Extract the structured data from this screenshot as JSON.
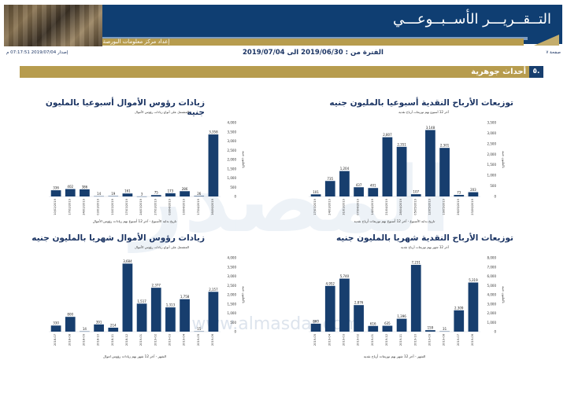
{
  "header": {
    "title": "التــقــريـــر الأســبــوعـــي",
    "prepared_by": "إعداد مركز معلومات البورصة المصرية"
  },
  "meta": {
    "page": "صفحة ٧",
    "period": "الفترة من : 2019/06/30 الى 2019/07/04",
    "issued": "إصدار 2019/07/04 07:17:51 م"
  },
  "section": {
    "number": "٥.",
    "title": "أحداث جوهرية"
  },
  "watermark": {
    "logo": "المصدر",
    "url": "www.almasdar.com"
  },
  "colors": {
    "navy": "#0f3e72",
    "gold": "#b79c4e",
    "bar": "#173e6e"
  },
  "chart_data": [
    {
      "id": "weekly-dividends",
      "type": "bar",
      "title": "توزيعات الأرباح النقدية أسبوعيا بالمليون جنيه",
      "subtitle": "آخر 12 أسبوع بهم توزيعات أرباح نقدية",
      "xlabel": "تاريخ بداية الأسبوع - آخر 12 أسبوع بهم توزيعات أرباح نقدية",
      "ylabel": "بالمليون جنيه",
      "ylim": [
        0,
        3500
      ],
      "yticks": [
        "0",
        "500",
        "1,000",
        "1,500",
        "2,000",
        "2,500",
        "3,000",
        "3,500"
      ],
      "categories": [
        "23/06/2019",
        "26/05/2019",
        "19/05/2019",
        "12/05/2019",
        "05/05/2019",
        "28/04/2019",
        "21/04/2019",
        "14/04/2019",
        "07/04/2019",
        "31/03/2019",
        "24/03/2019",
        "17/03/2019"
      ],
      "values": [
        203,
        73,
        2301,
        3148,
        107,
        2351,
        2807,
        401,
        437,
        1204,
        735,
        101
      ],
      "labels": [
        "203",
        "73",
        "2,301",
        "3,148",
        "107",
        "2,351",
        "2,807",
        "401",
        "437",
        "1,204",
        "735",
        "101"
      ]
    },
    {
      "id": "weekly-capital",
      "type": "bar",
      "title": "زيادات رؤوس الأموال أسبوعيا بالمليون جنيه",
      "subtitle": "المشتمل على أنواع زيادات رؤوس الأموال",
      "xlabel": "تاريخ بداية الأسبوع - آخر 12 أسبوع بهم زيادات رؤوس الأموال",
      "ylabel": "بالمليون جنيه",
      "ylim": [
        0,
        4000
      ],
      "yticks": [
        "0",
        "500",
        "1,000",
        "1,500",
        "2,000",
        "2,500",
        "3,000",
        "3,500",
        "4,000"
      ],
      "categories": [
        "16/06/2019",
        "17/04/2019",
        "10/04/2019",
        "03/04/2019",
        "27/03/2019",
        "24/03/2019",
        "17/03/2019",
        "10/03/2019",
        "03/03/2019",
        "24/02/2019",
        "17/02/2019",
        "10/02/2019"
      ],
      "values": [
        3358,
        26,
        286,
        173,
        75,
        3,
        161,
        19,
        14,
        386,
        402,
        336
      ],
      "labels": [
        "3,358",
        "26",
        "286",
        "173",
        "75",
        "3",
        "161",
        "19",
        "14",
        "386",
        "402",
        "336"
      ]
    },
    {
      "id": "monthly-dividends",
      "type": "bar",
      "title": "توزيعات الأرباح النقدية شهريا بالمليون جنيه",
      "subtitle": "آخر 12 شهر بهم توزيعات أرباح نقدية",
      "xlabel": "الشهر - آخر 12 شهر بهم توزيعات أرباح نقدية",
      "ylabel": "بالمليون جنيه",
      "ylim": [
        0,
        8000
      ],
      "yticks": [
        "0",
        "1,000",
        "2,000",
        "3,000",
        "4,000",
        "5,000",
        "6,000",
        "7,000",
        "8,000"
      ],
      "categories": [
        "2019-06",
        "2019-07",
        "2019-08",
        "2019-09",
        "2019-10",
        "2019-11",
        "2019-12",
        "2019-01",
        "2019-02",
        "2019-03",
        "2019-04",
        "2019-05"
      ],
      "values": [
        5319,
        2309,
        31,
        159,
        7231,
        1396,
        635,
        616,
        2876,
        5740,
        4952,
        860
      ],
      "labels": [
        "5,319",
        "2,309",
        "31",
        "159",
        "7,231",
        "1,396",
        "635",
        "616",
        "2,876",
        "5,740",
        "4,952",
        "860"
      ]
    },
    {
      "id": "monthly-capital",
      "type": "bar",
      "title": "زيادات رؤوس الأموال شهريا بالمليون جنيه",
      "subtitle": "المشتمل على أنواع زيادات رؤوس الأموال",
      "xlabel": "الشهر - آخر 12 شهر بهم زيادات رؤوس اموال",
      "ylabel": "بالمليون جنيه",
      "ylim": [
        0,
        4000
      ],
      "yticks": [
        "0",
        "500",
        "1,000",
        "1,500",
        "2,000",
        "2,500",
        "3,000",
        "3,500",
        "4,000"
      ],
      "categories": [
        "2019-06",
        "2019-05",
        "2019-04",
        "2019-03",
        "2019-02",
        "2019-01",
        "2018-12",
        "2018-11",
        "2018-10",
        "2018-09",
        "2018-08",
        "2018-07"
      ],
      "values": [
        2157,
        15,
        1758,
        1313,
        2377,
        1517,
        3684,
        214,
        391,
        14,
        800,
        330
      ],
      "labels": [
        "2,157",
        "15",
        "1,758",
        "1,313",
        "2,377",
        "1,517",
        "3,684",
        "214",
        "391",
        "14",
        "800",
        "330"
      ]
    }
  ]
}
